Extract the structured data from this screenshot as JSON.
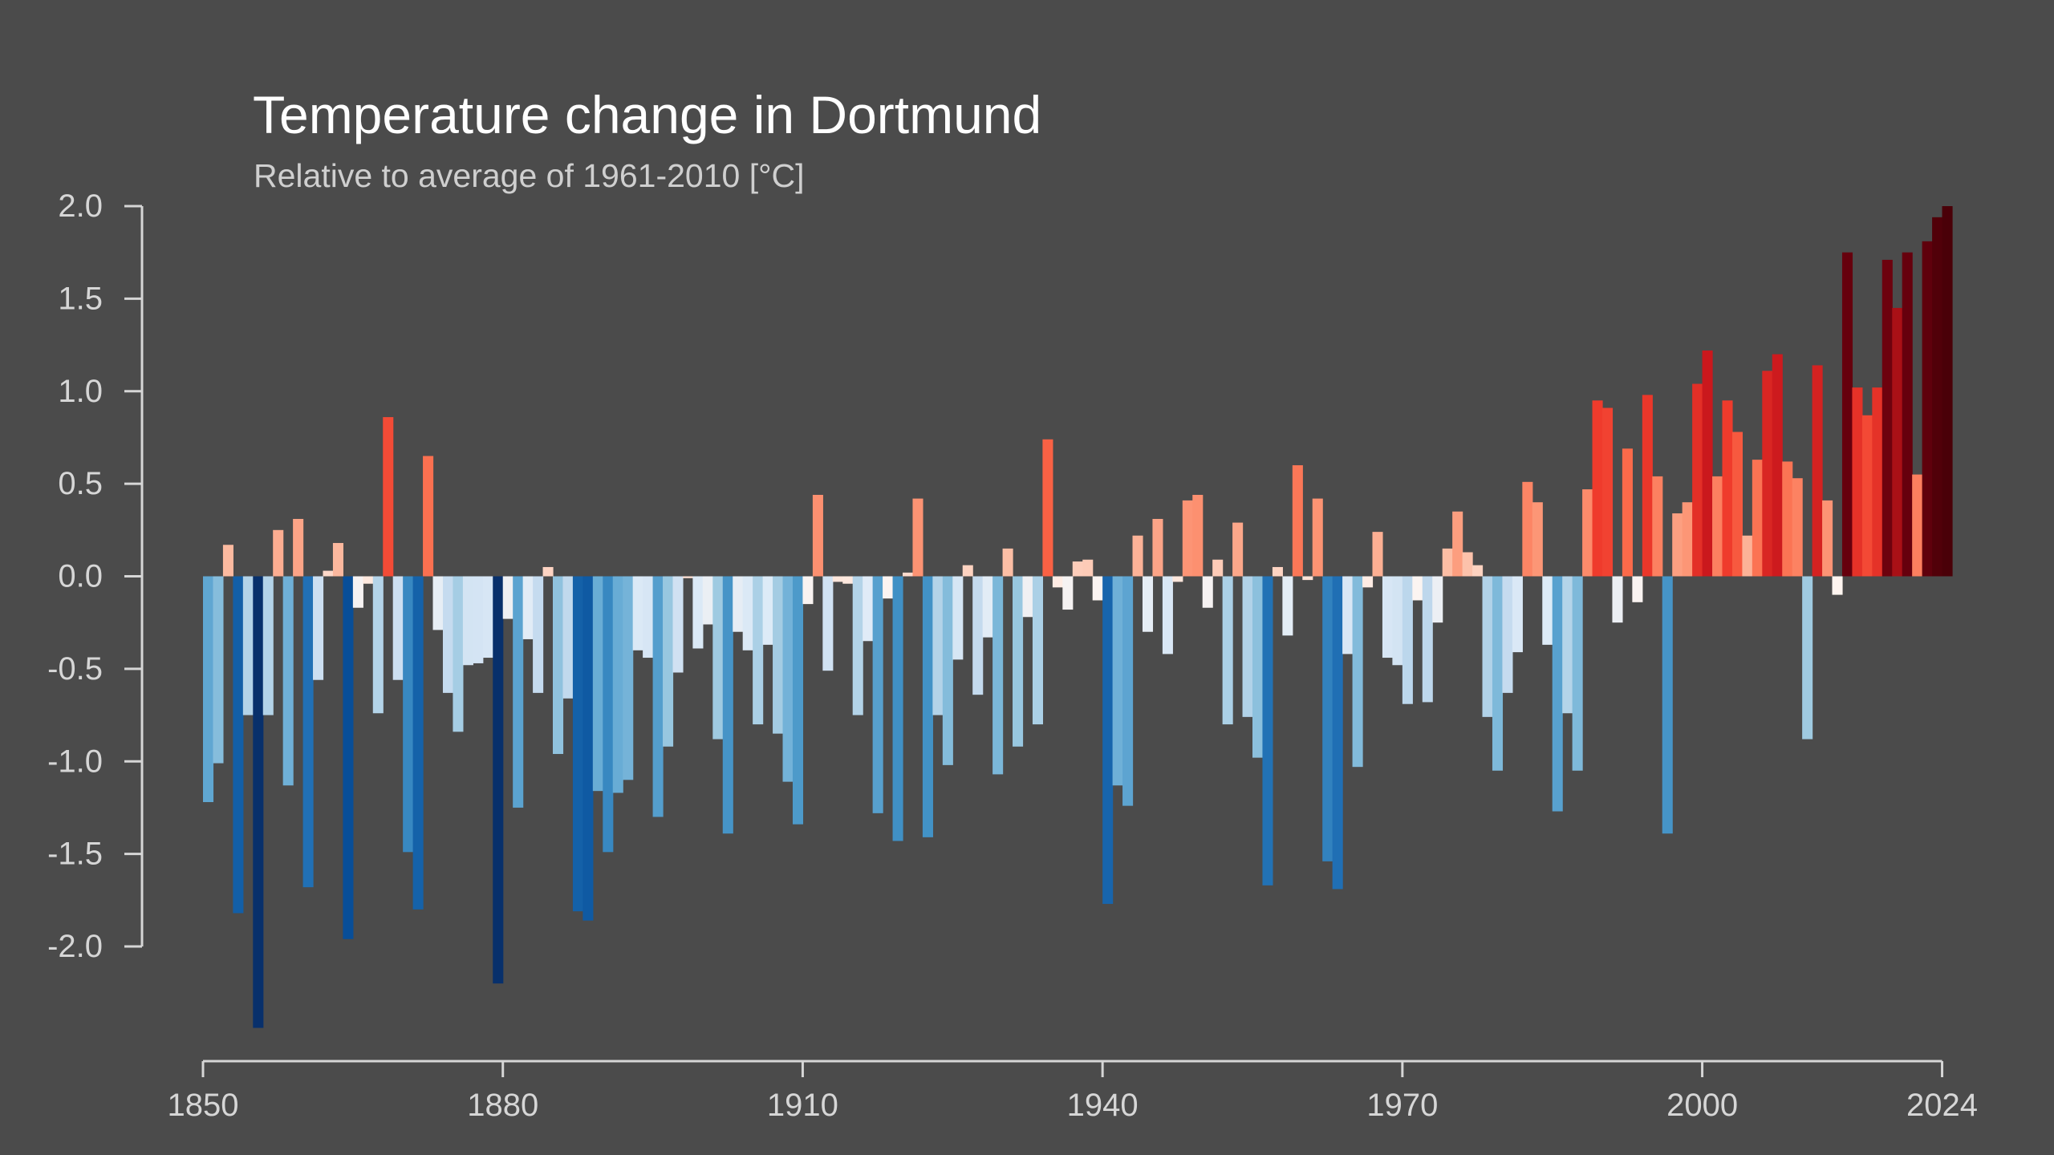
{
  "chart_data": {
    "type": "bar",
    "title": "Temperature change in Dortmund",
    "subtitle": "Relative to average of 1961-2010  [°C]",
    "xlabel": "",
    "ylabel": "",
    "x_start": 1850,
    "x_end": 2024,
    "xticks": [
      "1850",
      "1880",
      "1910",
      "1940",
      "1970",
      "2000",
      "2024"
    ],
    "yticks": [
      "2.0",
      "1.5",
      "1.0",
      "0.5",
      "0.0",
      "-0.5",
      "-1.0",
      "-1.5",
      "-2.0"
    ],
    "ylim": [
      -2.45,
      2.0
    ],
    "grid": false,
    "legend": "none",
    "colors": {
      "background": "#4b4b4b",
      "axis": "#d6d6d6",
      "text": "#ffffff",
      "subtext": "#cfcfcf"
    },
    "color_scale": {
      "min": -2.2,
      "max": 2.0,
      "stops": [
        "#08306b",
        "#08519c",
        "#2171b5",
        "#4292c6",
        "#6baed6",
        "#9ecae1",
        "#c6dbef",
        "#deebf7",
        "#fff5f0",
        "#fcbba1",
        "#fc9272",
        "#fb6a4a",
        "#ef3b2c",
        "#cb181d",
        "#a50f15",
        "#67000d",
        "#4a0008"
      ]
    },
    "series": [
      {
        "values": [
          -1.22,
          -1.01,
          0.17,
          -1.82,
          -0.75,
          -2.44,
          -0.75,
          0.25,
          -1.13,
          0.31,
          -1.68,
          -0.56,
          0.03,
          0.18,
          -1.96,
          -0.17,
          -0.04,
          -0.74,
          0.86,
          -0.56,
          -1.49,
          -1.8,
          0.65,
          -0.29,
          -0.63,
          -0.84,
          -0.48,
          -0.47,
          -0.44,
          -2.2,
          -0.23,
          -1.25,
          -0.34,
          -0.63,
          0.05,
          -0.96,
          -0.66,
          -1.81,
          -1.86,
          -1.16,
          -1.49,
          -1.17,
          -1.1,
          -0.4,
          -0.44,
          -1.3,
          -0.92,
          -0.52,
          -0.01,
          -0.39,
          -0.26,
          -0.88,
          -1.39,
          -0.3,
          -0.4,
          -0.8,
          -0.37,
          -0.85,
          -1.11,
          -1.34,
          -0.15,
          0.44,
          -0.51,
          -0.03,
          -0.04,
          -0.75,
          -0.35,
          -1.28,
          -0.12,
          -1.43,
          0.02,
          0.42,
          -1.41,
          -0.75,
          -1.02,
          -0.45,
          0.06,
          -0.64,
          -0.33,
          -1.07,
          0.15,
          -0.92,
          -0.22,
          -0.8,
          0.74,
          -0.06,
          -0.18,
          0.08,
          0.09,
          -0.13,
          -1.77,
          -1.13,
          -1.24,
          0.22,
          -0.3,
          0.31,
          -0.42,
          -0.03,
          0.41,
          0.44,
          -0.17,
          0.09,
          -0.8,
          0.29,
          -0.76,
          -0.98,
          -1.67,
          0.05,
          -0.32,
          0.6,
          -0.02,
          0.42,
          -1.54,
          -1.69,
          -0.42,
          -1.03,
          -0.06,
          0.24,
          -0.44,
          -0.48,
          -0.69,
          -0.13,
          -0.68,
          -0.25,
          0.15,
          0.35,
          0.13,
          0.06,
          -0.76,
          -1.05,
          -0.63,
          -0.41,
          0.51,
          0.4,
          -0.37,
          -1.27,
          -0.74,
          -1.05,
          0.47,
          0.95,
          0.91,
          -0.25,
          0.69,
          -0.14,
          0.98,
          0.54,
          -1.39,
          0.34,
          0.4,
          1.04,
          1.22,
          0.54,
          0.95,
          0.78,
          0.22,
          0.63,
          1.11,
          1.2,
          0.62,
          0.53,
          -0.88,
          1.14,
          0.41,
          -0.1,
          1.75,
          1.02,
          0.87,
          1.02,
          1.71,
          1.45,
          1.75,
          0.55,
          1.81,
          1.94,
          2.0
        ]
      }
    ]
  }
}
